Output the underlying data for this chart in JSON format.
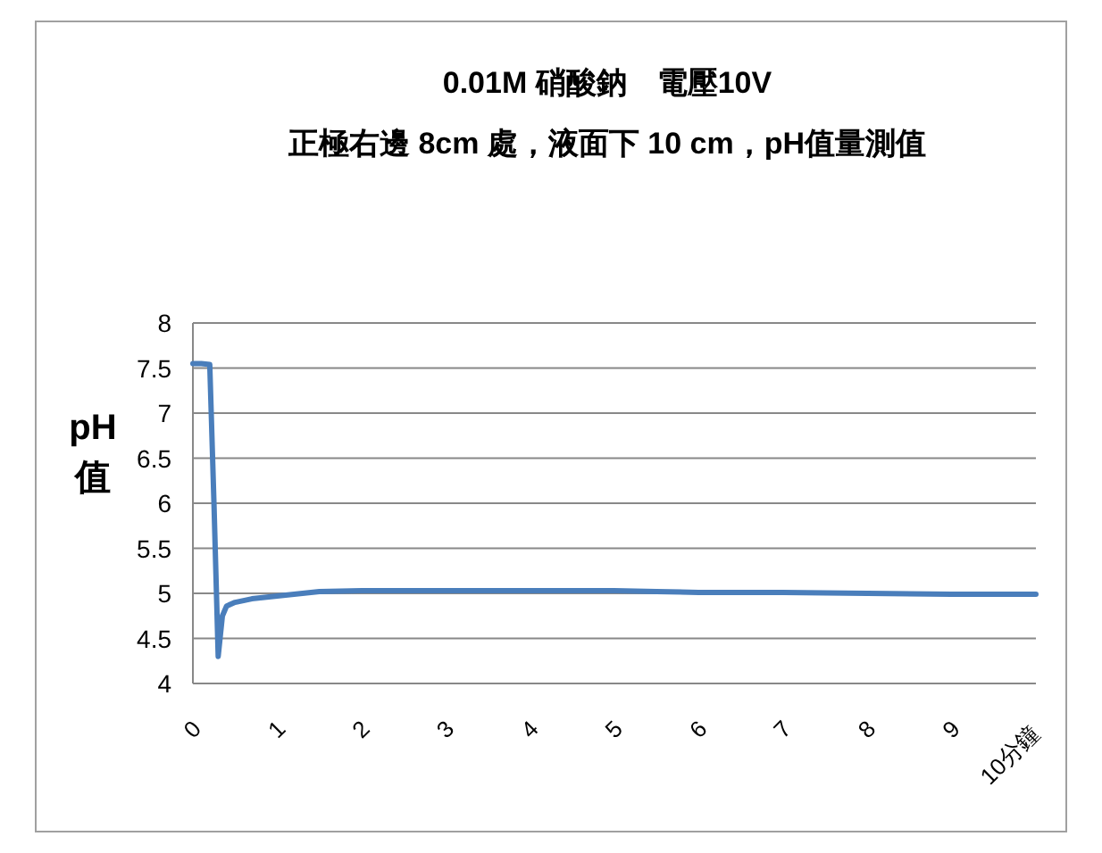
{
  "chart_data": {
    "type": "line",
    "title": "0.01M  硝酸鈉　電壓10V",
    "subtitle": "正極右邊 8cm 處，液面下 10 cm，pH值量測值",
    "ylabel": "pH\n值",
    "x": [
      0,
      0.1,
      0.2,
      0.25,
      0.3,
      0.35,
      0.4,
      0.5,
      0.7,
      1,
      1.5,
      2,
      3,
      4,
      5,
      5.5,
      6,
      7,
      8,
      9,
      10
    ],
    "series": [
      {
        "color": "#4a7ebb",
        "values": [
          7.55,
          7.55,
          7.54,
          6,
          4.3,
          4.75,
          4.86,
          4.9,
          4.94,
          4.97,
          5.02,
          5.03,
          5.03,
          5.03,
          5.03,
          5.02,
          5.01,
          5.01,
          5,
          4.99,
          4.99
        ]
      }
    ],
    "xlim": [
      0,
      10
    ],
    "xticks": [
      0,
      1,
      2,
      3,
      4,
      5,
      6,
      7,
      8,
      9,
      {
        "value": 10,
        "label": "10分鐘"
      }
    ],
    "ylim": [
      4,
      8
    ],
    "yticks": [
      4,
      4.5,
      5,
      5.5,
      6,
      6.5,
      7,
      7.5,
      8
    ],
    "grid": "y",
    "marker": "none",
    "line_style": "solid"
  }
}
